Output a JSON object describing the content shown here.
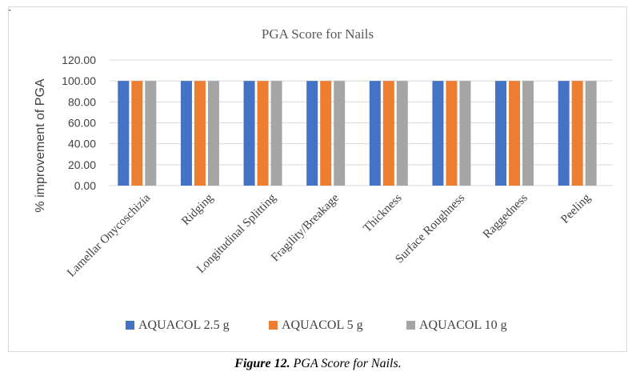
{
  "chart_data": {
    "type": "bar",
    "title": "PGA Score for Nails",
    "xlabel": "",
    "ylabel": "% improvement of PGA",
    "ylim": [
      0,
      120
    ],
    "yticks": [
      "0.00",
      "20.00",
      "40.00",
      "60.00",
      "80.00",
      "100.00",
      "120.00"
    ],
    "ytick_values": [
      0,
      20,
      40,
      60,
      80,
      100,
      120
    ],
    "categories": [
      "Lamellar Onycoschizia",
      "Ridging",
      "Longitudinal Splitting",
      "Fragility/Breakage",
      "Thickness",
      "Surface Roughness",
      "Raggedness",
      "Peeling"
    ],
    "series": [
      {
        "name": "AQUACOL 2.5 g",
        "color": "#4472c4",
        "values": [
          100,
          100,
          100,
          100,
          100,
          100,
          100,
          100
        ]
      },
      {
        "name": "AQUACOL 5 g",
        "color": "#ed7d31",
        "values": [
          100,
          100,
          100,
          100,
          100,
          100,
          100,
          100
        ]
      },
      {
        "name": "AQUACOL 10 g",
        "color": "#a5a5a5",
        "values": [
          100,
          100,
          100,
          100,
          100,
          100,
          100,
          100
        ]
      }
    ],
    "grid": true,
    "legend": "bottom"
  },
  "caption": {
    "label": "Figure 12.",
    "text": "PGA Score for Nails."
  }
}
